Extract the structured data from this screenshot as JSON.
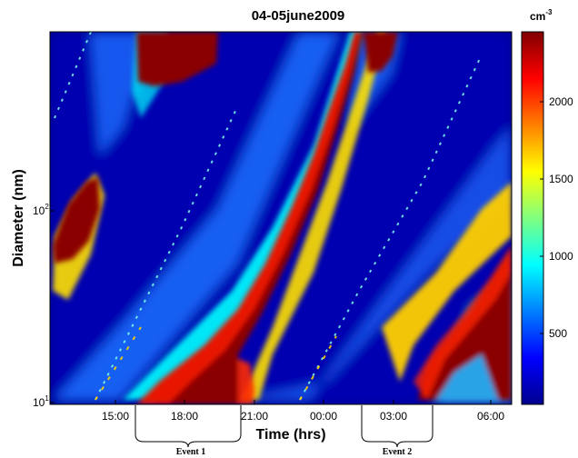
{
  "chart_data": {
    "type": "heatmap",
    "title": "04-05june2009",
    "xlabel": "Time (hrs)",
    "ylabel": "Diameter (nm)",
    "xticks": [
      "15:00",
      "18:00",
      "21:00",
      "00:00",
      "03:00",
      "06:00"
    ],
    "yscale": "log",
    "yticks": [
      {
        "base": "10",
        "exp": "1"
      },
      {
        "base": "10",
        "exp": "2"
      }
    ],
    "colorbar": {
      "unit_base": "cm",
      "unit_exp": "-3",
      "ticks": [
        "500",
        "1000",
        "1500",
        "2000"
      ],
      "range": [
        0,
        2400
      ],
      "colormap": "jet"
    },
    "events": [
      {
        "label": "Event 1",
        "start": "16:30",
        "end": "20:00"
      },
      {
        "label": "Event 2",
        "start": "01:00",
        "end": "03:30"
      }
    ],
    "grid": false
  },
  "colors": {
    "jet_low": "#00008f",
    "jet_mid": "#00ffff",
    "jet_high": "#800000"
  }
}
